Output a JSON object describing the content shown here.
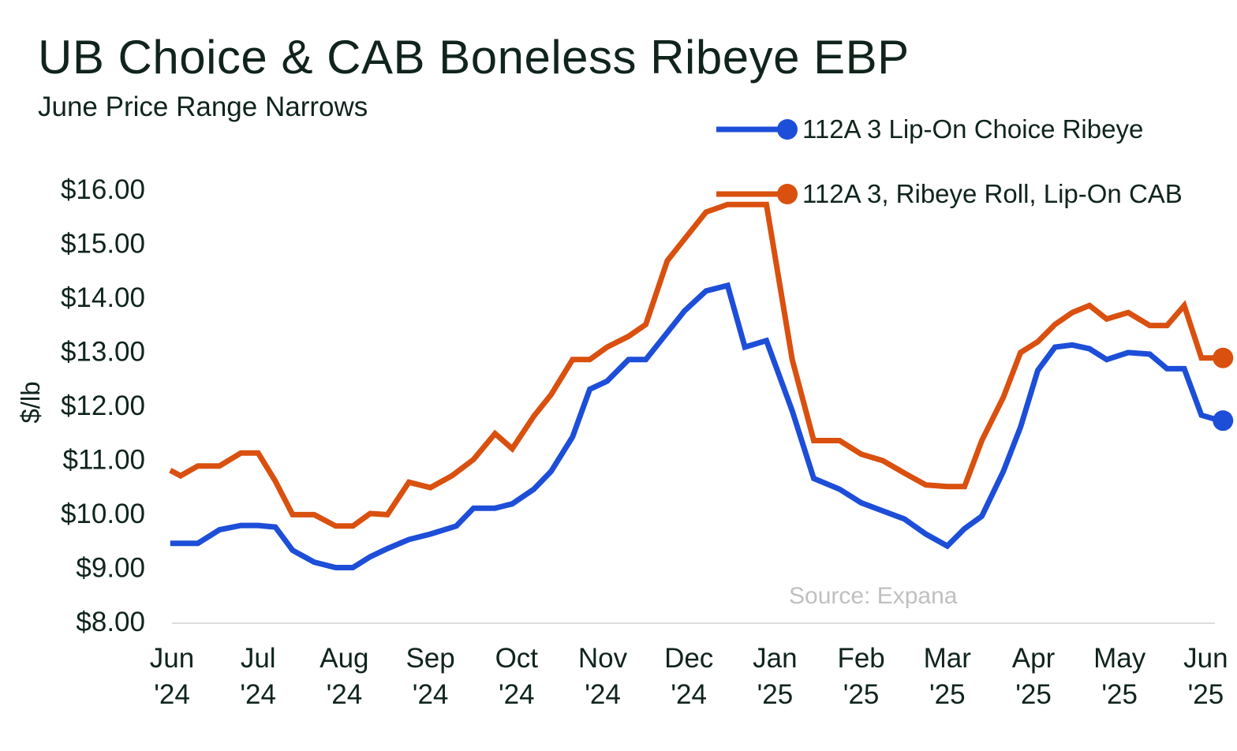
{
  "title": "UB Choice & CAB Boneless Ribeye EBP",
  "subtitle": "June Price Range Narrows",
  "source": "Source: Expana",
  "colors": {
    "choice": "#1d4ed8",
    "cab": "#d9500f",
    "axis": "#dddddd",
    "text": "#10241c"
  },
  "chart_data": {
    "type": "line",
    "title": "UB Choice & CAB Boneless Ribeye EBP",
    "subtitle": "June Price Range Narrows",
    "ylabel": "$/lb",
    "xlabel": "",
    "ylim": [
      8,
      16
    ],
    "yticks": [
      8,
      9,
      10,
      11,
      12,
      13,
      14,
      15,
      16
    ],
    "ytick_labels": [
      "$8.00",
      "$9.00",
      "$10.00",
      "$11.00",
      "$12.00",
      "$13.00",
      "$14.00",
      "$15.00",
      "$16.00"
    ],
    "x_range": [
      0,
      12.2
    ],
    "xticks": [
      {
        "pos": 0,
        "line1": "Jun",
        "line2": "'24"
      },
      {
        "pos": 1,
        "line1": "Jul",
        "line2": "'24"
      },
      {
        "pos": 2,
        "line1": "Aug",
        "line2": "'24"
      },
      {
        "pos": 3,
        "line1": "Sep",
        "line2": "'24"
      },
      {
        "pos": 4,
        "line1": "Oct",
        "line2": "'24"
      },
      {
        "pos": 5,
        "line1": "Nov",
        "line2": "'24"
      },
      {
        "pos": 6,
        "line1": "Dec",
        "line2": "'24"
      },
      {
        "pos": 7,
        "line1": "Jan",
        "line2": "'25"
      },
      {
        "pos": 8,
        "line1": "Feb",
        "line2": "'25"
      },
      {
        "pos": 9,
        "line1": "Mar",
        "line2": "'25"
      },
      {
        "pos": 10,
        "line1": "Apr",
        "line2": "'25"
      },
      {
        "pos": 11,
        "line1": "May",
        "line2": "'25"
      },
      {
        "pos": 12,
        "line1": "Jun",
        "line2": "'25"
      }
    ],
    "grid": false,
    "legend_position": "top-right",
    "series": [
      {
        "name": "112A 3 Lip-On  Choice Ribeye",
        "color": "#1d4ed8",
        "x": [
          -0.02,
          0.3,
          0.55,
          0.8,
          1.0,
          1.2,
          1.4,
          1.65,
          1.9,
          2.1,
          2.3,
          2.5,
          2.75,
          3.0,
          3.3,
          3.5,
          3.75,
          3.95,
          4.2,
          4.4,
          4.65,
          4.85,
          5.05,
          5.3,
          5.5,
          5.75,
          5.95,
          6.2,
          6.45,
          6.65,
          6.9,
          7.2,
          7.45,
          7.75,
          8.0,
          8.25,
          8.5,
          8.75,
          9.0,
          9.2,
          9.4,
          9.65,
          9.85,
          10.05,
          10.25,
          10.45,
          10.65,
          10.85,
          11.1,
          11.35,
          11.55,
          11.75,
          11.95,
          12.1,
          12.2
        ],
        "values": [
          9.45,
          9.45,
          9.7,
          9.78,
          9.78,
          9.75,
          9.32,
          9.1,
          9.0,
          9.0,
          9.2,
          9.35,
          9.52,
          9.62,
          9.77,
          10.1,
          10.1,
          10.18,
          10.45,
          10.78,
          11.42,
          12.3,
          12.45,
          12.85,
          12.85,
          13.35,
          13.75,
          14.12,
          14.22,
          13.08,
          13.2,
          11.9,
          10.65,
          10.45,
          10.2,
          10.05,
          9.9,
          9.62,
          9.4,
          9.72,
          9.95,
          10.78,
          11.6,
          12.65,
          13.08,
          13.12,
          13.05,
          12.85,
          12.98,
          12.95,
          12.68,
          12.68,
          11.82,
          11.75,
          11.72
        ]
      },
      {
        "name": "112A 3, Ribeye Roll, Lip-On CAB",
        "color": "#d9500f",
        "x": [
          -0.02,
          0.1,
          0.3,
          0.55,
          0.8,
          1.0,
          1.2,
          1.4,
          1.65,
          1.9,
          2.1,
          2.3,
          2.5,
          2.75,
          3.0,
          3.25,
          3.5,
          3.75,
          3.95,
          4.2,
          4.4,
          4.65,
          4.85,
          5.05,
          5.3,
          5.5,
          5.75,
          5.95,
          6.2,
          6.45,
          6.65,
          6.9,
          7.2,
          7.45,
          7.75,
          8.0,
          8.25,
          8.5,
          8.75,
          9.0,
          9.2,
          9.4,
          9.65,
          9.85,
          10.05,
          10.25,
          10.45,
          10.65,
          10.85,
          11.1,
          11.35,
          11.55,
          11.75,
          11.95,
          12.1,
          12.2
        ],
        "values": [
          10.8,
          10.7,
          10.88,
          10.88,
          11.12,
          11.12,
          10.6,
          9.98,
          9.98,
          9.77,
          9.77,
          10.0,
          9.98,
          10.58,
          10.48,
          10.7,
          11.0,
          11.48,
          11.2,
          11.8,
          12.2,
          12.85,
          12.85,
          13.08,
          13.28,
          13.5,
          14.68,
          15.08,
          15.58,
          15.72,
          15.72,
          15.72,
          12.85,
          11.35,
          11.35,
          11.1,
          10.98,
          10.75,
          10.53,
          10.5,
          10.5,
          11.35,
          12.15,
          12.98,
          13.18,
          13.5,
          13.72,
          13.85,
          13.6,
          13.72,
          13.48,
          13.48,
          13.85,
          12.88,
          12.88,
          12.88
        ]
      }
    ]
  }
}
